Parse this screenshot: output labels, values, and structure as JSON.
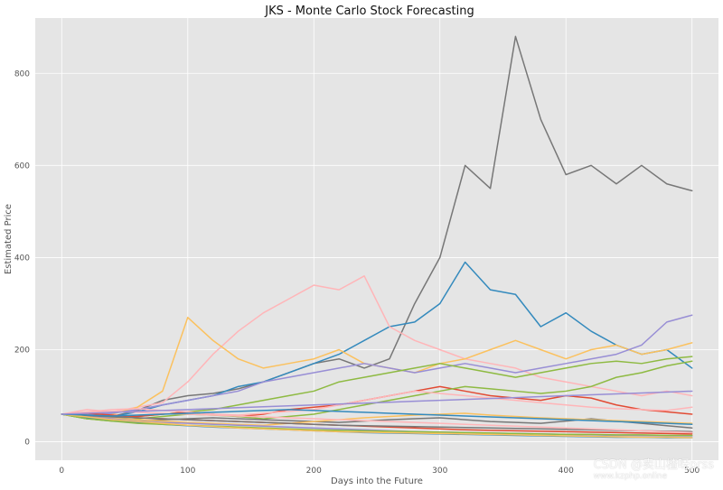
{
  "chart_data": {
    "type": "line",
    "title": "JKS - Monte Carlo Stock Forecasting",
    "xlabel": "Days into the Future",
    "ylabel": "Estimated Price",
    "xlim": [
      -21,
      521
    ],
    "ylim": [
      -40,
      920
    ],
    "xticks": [
      0,
      100,
      200,
      300,
      400,
      500
    ],
    "yticks": [
      0,
      200,
      400,
      600,
      800
    ],
    "grid": true,
    "legend": "none",
    "background": "#e5e5e5",
    "grid_color": "#ffffff",
    "x": [
      0,
      20,
      40,
      60,
      80,
      100,
      120,
      140,
      160,
      180,
      200,
      220,
      240,
      260,
      280,
      300,
      320,
      340,
      360,
      380,
      400,
      420,
      440,
      460,
      480,
      500
    ],
    "series": [
      {
        "color": "#777777",
        "values": [
          60,
          52,
          55,
          68,
          90,
          100,
          105,
          115,
          130,
          150,
          170,
          180,
          160,
          180,
          300,
          400,
          600,
          550,
          880,
          700,
          580,
          600,
          560,
          600,
          560,
          545
        ]
      },
      {
        "color": "#348abd",
        "values": [
          60,
          50,
          55,
          65,
          80,
          90,
          100,
          120,
          130,
          150,
          170,
          190,
          220,
          250,
          260,
          300,
          390,
          330,
          320,
          250,
          280,
          240,
          210,
          190,
          200,
          160
        ]
      },
      {
        "color": "#ffb5b8",
        "values": [
          60,
          70,
          65,
          75,
          85,
          130,
          190,
          240,
          280,
          310,
          340,
          330,
          360,
          250,
          220,
          200,
          180,
          170,
          160,
          140,
          130,
          120,
          110,
          100,
          110,
          100
        ]
      },
      {
        "color": "#fbc15e",
        "values": [
          60,
          55,
          60,
          75,
          110,
          270,
          220,
          180,
          160,
          170,
          180,
          200,
          170,
          160,
          150,
          170,
          180,
          200,
          220,
          200,
          180,
          200,
          210,
          190,
          200,
          215
        ]
      },
      {
        "color": "#988ed5",
        "values": [
          60,
          58,
          62,
          70,
          80,
          90,
          100,
          110,
          130,
          140,
          150,
          160,
          170,
          160,
          150,
          160,
          170,
          160,
          150,
          160,
          170,
          180,
          190,
          210,
          260,
          275
        ]
      },
      {
        "color": "#8eba42",
        "values": [
          60,
          55,
          50,
          55,
          60,
          65,
          70,
          80,
          90,
          100,
          110,
          130,
          140,
          150,
          160,
          170,
          160,
          150,
          140,
          150,
          160,
          170,
          175,
          170,
          180,
          185
        ]
      },
      {
        "color": "#e24a33",
        "values": [
          60,
          62,
          58,
          55,
          60,
          65,
          60,
          55,
          60,
          70,
          75,
          80,
          90,
          100,
          110,
          120,
          110,
          100,
          95,
          90,
          100,
          95,
          80,
          70,
          65,
          60
        ]
      },
      {
        "color": "#8eba42",
        "values": [
          60,
          50,
          45,
          50,
          55,
          60,
          58,
          55,
          50,
          55,
          60,
          70,
          80,
          90,
          100,
          110,
          120,
          115,
          110,
          105,
          110,
          120,
          140,
          150,
          165,
          175
        ]
      },
      {
        "color": "#777777",
        "values": [
          60,
          55,
          50,
          45,
          48,
          50,
          52,
          50,
          48,
          46,
          44,
          42,
          45,
          48,
          50,
          52,
          48,
          44,
          42,
          40,
          45,
          50,
          45,
          40,
          35,
          30
        ]
      },
      {
        "color": "#ffb5b8",
        "values": [
          60,
          65,
          70,
          72,
          68,
          65,
          60,
          58,
          62,
          66,
          70,
          80,
          90,
          100,
          110,
          105,
          100,
          95,
          90,
          85,
          80,
          75,
          72,
          70,
          68,
          75
        ]
      },
      {
        "color": "#fbc15e",
        "values": [
          60,
          56,
          52,
          48,
          45,
          42,
          40,
          38,
          36,
          40,
          44,
          48,
          52,
          55,
          58,
          60,
          62,
          58,
          55,
          52,
          50,
          48,
          46,
          44,
          42,
          40
        ]
      },
      {
        "color": "#348abd",
        "values": [
          60,
          52,
          46,
          42,
          38,
          35,
          32,
          30,
          28,
          26,
          24,
          22,
          20,
          19,
          18,
          17,
          16,
          15,
          14,
          13,
          12,
          11,
          10,
          10,
          9,
          9
        ]
      },
      {
        "color": "#988ed5",
        "values": [
          60,
          55,
          50,
          45,
          42,
          40,
          38,
          36,
          34,
          32,
          30,
          28,
          26,
          24,
          22,
          21,
          20,
          19,
          18,
          17,
          16,
          15,
          14,
          14,
          13,
          13
        ]
      },
      {
        "color": "#e24a33",
        "values": [
          60,
          58,
          55,
          52,
          50,
          48,
          46,
          44,
          42,
          40,
          38,
          36,
          34,
          32,
          30,
          28,
          26,
          25,
          24,
          23,
          22,
          21,
          20,
          19,
          18,
          17
        ]
      },
      {
        "color": "#8eba42",
        "values": [
          60,
          50,
          45,
          40,
          38,
          36,
          34,
          32,
          30,
          28,
          26,
          25,
          24,
          23,
          22,
          21,
          20,
          19,
          18,
          17,
          16,
          16,
          15,
          15,
          14,
          14
        ]
      },
      {
        "color": "#777777",
        "values": [
          60,
          57,
          54,
          52,
          50,
          48,
          46,
          44,
          42,
          40,
          38,
          36,
          35,
          34,
          33,
          32,
          31,
          30,
          29,
          28,
          27,
          26,
          25,
          24,
          23,
          22
        ]
      },
      {
        "color": "#ffb5b8",
        "values": [
          60,
          63,
          66,
          64,
          62,
          60,
          58,
          56,
          54,
          52,
          50,
          48,
          46,
          44,
          42,
          40,
          38,
          36,
          34,
          32,
          30,
          28,
          26,
          24,
          22,
          20
        ]
      },
      {
        "color": "#fbc15e",
        "values": [
          60,
          54,
          48,
          44,
          40,
          36,
          33,
          30,
          28,
          26,
          24,
          22,
          21,
          20,
          19,
          18,
          17,
          16,
          15,
          14,
          13,
          12,
          11,
          10,
          10,
          9
        ]
      },
      {
        "color": "#348abd",
        "values": [
          60,
          58,
          56,
          58,
          60,
          62,
          64,
          66,
          68,
          70,
          68,
          66,
          64,
          62,
          60,
          58,
          56,
          54,
          52,
          50,
          48,
          46,
          44,
          42,
          40,
          38
        ]
      },
      {
        "color": "#988ed5",
        "values": [
          60,
          62,
          64,
          66,
          68,
          70,
          72,
          74,
          76,
          78,
          80,
          82,
          84,
          86,
          88,
          90,
          92,
          94,
          96,
          98,
          100,
          102,
          104,
          106,
          108,
          110
        ]
      }
    ]
  },
  "watermark": {
    "main": "CSDN @卖山楂呀prss",
    "sub": "www.kzphp.online"
  }
}
